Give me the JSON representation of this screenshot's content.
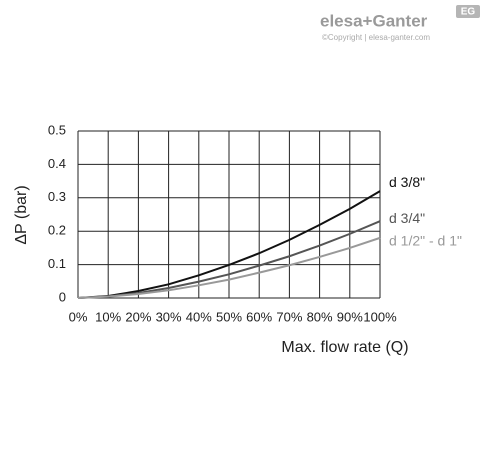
{
  "brand": {
    "name": "elesa+Ganter",
    "copyright": "©Copyright | elesa-ganter.com",
    "badge": "EG"
  },
  "chart_data": {
    "type": "line",
    "x_label": "Max. flow rate (Q)",
    "y_label": "ΔP (bar)",
    "x": [
      0,
      10,
      20,
      30,
      40,
      50,
      60,
      70,
      80,
      90,
      100
    ],
    "series": [
      {
        "name": "d 3/8\"",
        "color": "#111111",
        "values": [
          0,
          0.006,
          0.021,
          0.041,
          0.068,
          0.099,
          0.134,
          0.174,
          0.219,
          0.267,
          0.32
        ]
      },
      {
        "name": "d 3/4\"",
        "color": "#555555",
        "values": [
          0,
          0.005,
          0.015,
          0.03,
          0.049,
          0.071,
          0.097,
          0.125,
          0.157,
          0.192,
          0.23
        ]
      },
      {
        "name": "d 1/2\" - d 1\"",
        "color": "#999999",
        "values": [
          0,
          0.004,
          0.012,
          0.023,
          0.038,
          0.055,
          0.076,
          0.098,
          0.123,
          0.15,
          0.18
        ]
      }
    ],
    "xlim": [
      0,
      100
    ],
    "xticks": [
      {
        "value": 0,
        "label": "0%"
      },
      {
        "value": 10,
        "label": "10%"
      },
      {
        "value": 20,
        "label": "20%"
      },
      {
        "value": 30,
        "label": "30%"
      },
      {
        "value": 40,
        "label": "40%"
      },
      {
        "value": 50,
        "label": "50%"
      },
      {
        "value": 60,
        "label": "60%"
      },
      {
        "value": 70,
        "label": "70%"
      },
      {
        "value": 80,
        "label": "80%"
      },
      {
        "value": 90,
        "label": "90%"
      },
      {
        "value": 100,
        "label": "100%"
      }
    ],
    "ylim": [
      0,
      0.5
    ],
    "yticks": [
      0,
      0.1,
      0.2,
      0.3,
      0.4,
      0.5
    ],
    "grid": true
  }
}
